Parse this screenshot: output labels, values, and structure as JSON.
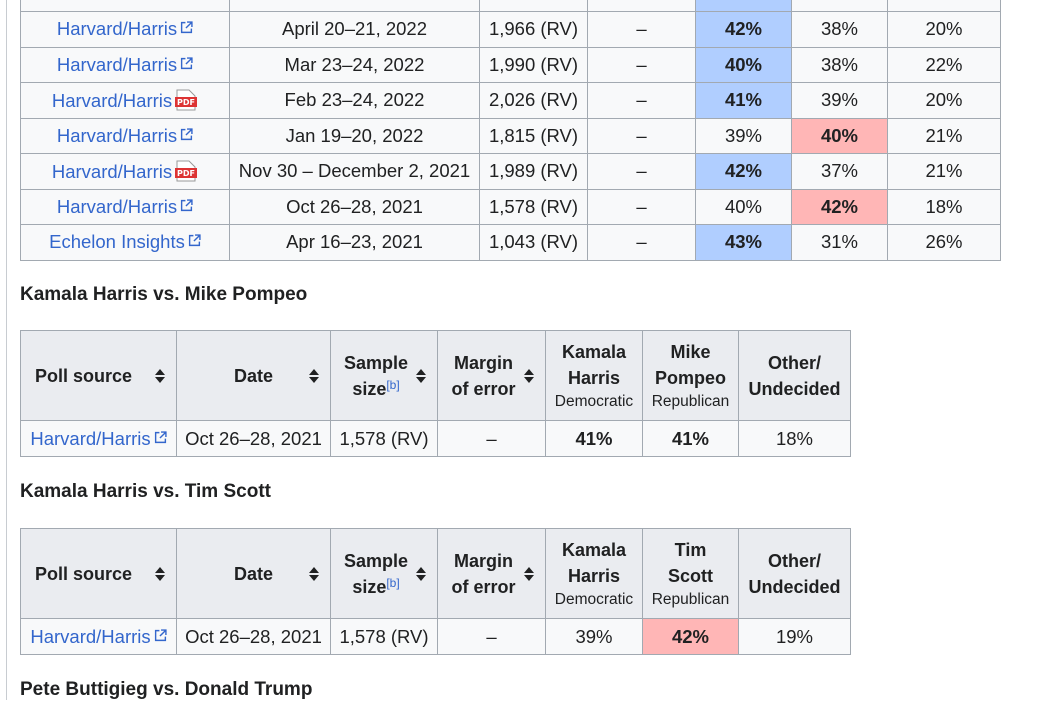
{
  "top_table": {
    "rows": [
      {
        "source": "Harvard/Harris",
        "icon": "external-link-icon",
        "date": "April 20–21, 2022",
        "sample": "1,966 (RV)",
        "margin": "–",
        "c1": "42%",
        "c2": "38%",
        "c3": "20%",
        "hl": "c1"
      },
      {
        "source": "Harvard/Harris",
        "icon": "external-link-icon",
        "date": "Mar 23–24, 2022",
        "sample": "1,990 (RV)",
        "margin": "–",
        "c1": "40%",
        "c2": "38%",
        "c3": "22%",
        "hl": "c1"
      },
      {
        "source": "Harvard/Harris",
        "icon": "pdf-icon",
        "date": "Feb 23–24, 2022",
        "sample": "2,026 (RV)",
        "margin": "–",
        "c1": "41%",
        "c2": "39%",
        "c3": "20%",
        "hl": "c1"
      },
      {
        "source": "Harvard/Harris",
        "icon": "external-link-icon",
        "date": "Jan 19–20, 2022",
        "sample": "1,815 (RV)",
        "margin": "–",
        "c1": "39%",
        "c2": "40%",
        "c3": "21%",
        "hl": "c2"
      },
      {
        "source": "Harvard/Harris",
        "icon": "pdf-icon",
        "date": "Nov 30 – December 2, 2021",
        "sample": "1,989 (RV)",
        "margin": "–",
        "c1": "42%",
        "c2": "37%",
        "c3": "21%",
        "hl": "c1"
      },
      {
        "source": "Harvard/Harris",
        "icon": "external-link-icon",
        "date": "Oct 26–28, 2021",
        "sample": "1,578 (RV)",
        "margin": "–",
        "c1": "40%",
        "c2": "42%",
        "c3": "18%",
        "hl": "c2"
      },
      {
        "source": "Echelon Insights",
        "icon": "external-link-icon",
        "date": "Apr 16–23, 2021",
        "sample": "1,043 (RV)",
        "margin": "–",
        "c1": "43%",
        "c2": "31%",
        "c3": "26%",
        "hl": "c1"
      }
    ]
  },
  "sections": [
    {
      "heading": "Kamala Harris vs. Mike Pompeo",
      "headers": {
        "poll_source": "Poll source",
        "date": "Date",
        "sample_l1": "Sample",
        "sample_l2": "size",
        "sample_note": "[b]",
        "margin_l1": "Margin",
        "margin_l2": "of error",
        "c1_l1": "Kamala",
        "c1_l2": "Harris",
        "c1_party": "Democratic",
        "c2_l1": "Mike",
        "c2_l2": "Pompeo",
        "c2_party": "Republican",
        "other_l1": "Other/",
        "other_l2": "Undecided"
      },
      "row": {
        "source": "Harvard/Harris",
        "date": "Oct 26–28, 2021",
        "sample": "1,578 (RV)",
        "margin": "–",
        "c1": "41%",
        "c2": "41%",
        "other": "18%",
        "hl": "tie"
      }
    },
    {
      "heading": "Kamala Harris vs. Tim Scott",
      "headers": {
        "poll_source": "Poll source",
        "date": "Date",
        "sample_l1": "Sample",
        "sample_l2": "size",
        "sample_note": "[b]",
        "margin_l1": "Margin",
        "margin_l2": "of error",
        "c1_l1": "Kamala",
        "c1_l2": "Harris",
        "c1_party": "Democratic",
        "c2_l1": "Tim",
        "c2_l2": "Scott",
        "c2_party": "Republican",
        "other_l1": "Other/",
        "other_l2": "Undecided"
      },
      "row": {
        "source": "Harvard/Harris",
        "date": "Oct 26–28, 2021",
        "sample": "1,578 (RV)",
        "margin": "–",
        "c1": "39%",
        "c2": "42%",
        "other": "19%",
        "hl": "c2"
      }
    }
  ],
  "next_heading": "Pete Buttigieg vs. Donald Trump",
  "colors": {
    "link": "#3366cc",
    "dem_highlight": "#b0ceff",
    "rep_highlight": "#ffb6b6",
    "header_bg": "#eaecf0",
    "cell_bg": "#f8f9fa",
    "border": "#a2a9b1"
  }
}
